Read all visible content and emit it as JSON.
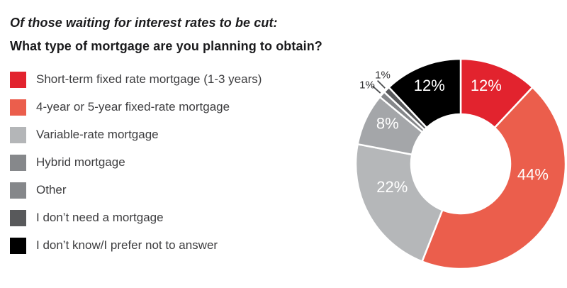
{
  "header": {
    "title": "Of those waiting for interest rates to be cut:",
    "subtitle": "What type of mortgage are you planning to obtain?"
  },
  "legend": {
    "items": [
      {
        "label": "Short-term fixed rate mortgage (1-3 years)",
        "color": "#e2232e"
      },
      {
        "label": "4-year or 5-year fixed-rate mortgage",
        "color": "#eb5e4c"
      },
      {
        "label": "Variable-rate mortgage",
        "color": "#b4b6b8"
      },
      {
        "label": "Hybrid mortgage",
        "color": "#86888b"
      },
      {
        "label": "Other",
        "color": "#85878a"
      },
      {
        "label": "I don’t need a mortgage",
        "color": "#58595b"
      },
      {
        "label": "I don’t know/I prefer not to answer",
        "color": "#000000"
      }
    ]
  },
  "chart_data": {
    "type": "pie",
    "subtype": "donut",
    "title": "Of those waiting for interest rates to be cut: What type of mortgage are you planning to obtain?",
    "categories": [
      "Short-term fixed rate mortgage (1-3 years)",
      "4-year or 5-year fixed-rate mortgage",
      "Variable-rate mortgage",
      "Hybrid mortgage",
      "Other",
      "I don't need a mortgage",
      "I don't know/I prefer not to answer"
    ],
    "values": [
      12,
      44,
      22,
      8,
      1,
      1,
      12
    ],
    "labels": [
      "12%",
      "44%",
      "22%",
      "8%",
      "1%",
      "1%",
      "12%"
    ],
    "colors": [
      "#e2232e",
      "#eb5e4c",
      "#b5b7b9",
      "#a4a6a9",
      "#85878a",
      "#58595b",
      "#000000"
    ],
    "start_angle_deg": 0,
    "direction": "clockwise",
    "donut_hole_ratio": 0.47,
    "legend_position": "left",
    "slice_gap_color": "#ffffff"
  }
}
